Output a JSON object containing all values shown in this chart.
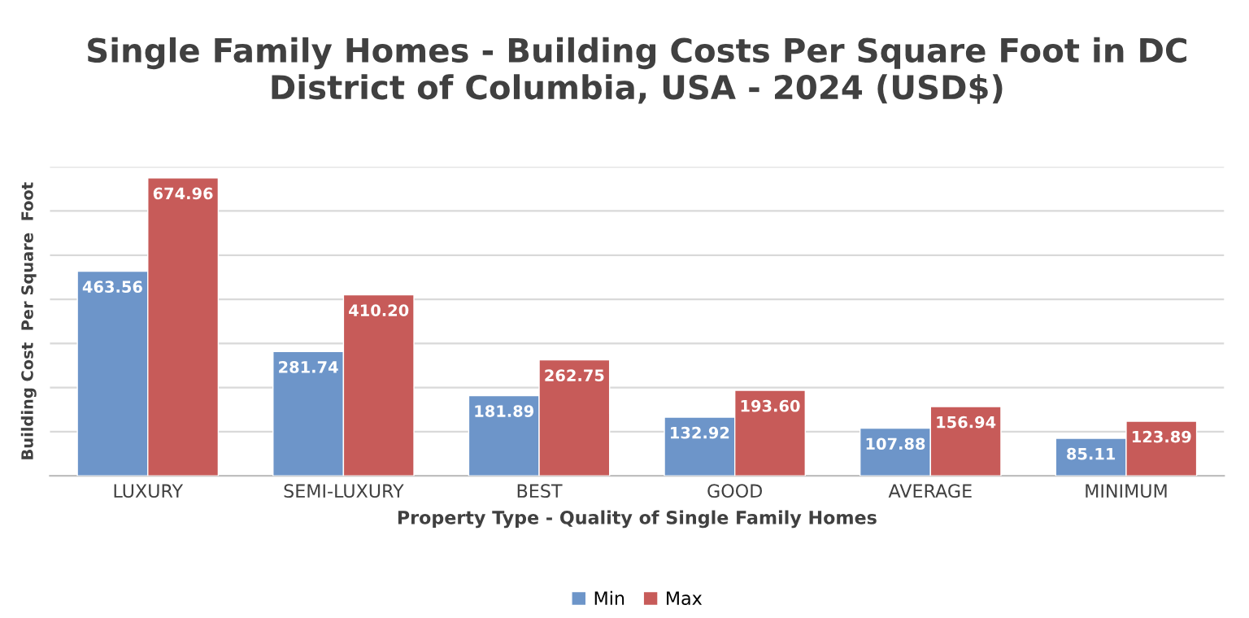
{
  "chart_data": {
    "type": "bar",
    "title": "Single Family Homes - Building Costs Per Square Foot in DC\nDistrict of Columbia, USA - 2024 (USD$)",
    "xlabel": "Property Type - Quality of Single Family Homes",
    "ylabel": "Building Cost  Per Square  Foot",
    "categories": [
      "LUXURY",
      "SEMI-LUXURY",
      "BEST",
      "GOOD",
      "AVERAGE",
      "MINIMUM"
    ],
    "series": [
      {
        "name": "Min",
        "color": "#6d95c9",
        "values": [
          463.56,
          281.74,
          181.89,
          132.92,
          107.88,
          85.11
        ],
        "value_labels": [
          "463.56",
          "281.74",
          "181.89",
          "132.92",
          "107.88",
          "85.11"
        ]
      },
      {
        "name": "Max",
        "color": "#c75b59",
        "values": [
          674.96,
          410.2,
          262.75,
          193.6,
          156.94,
          123.89
        ],
        "value_labels": [
          "674.96",
          "410.20",
          "262.75",
          "193.60",
          "156.94",
          "123.89"
        ]
      }
    ],
    "ylim": [
      0,
      700
    ],
    "yticks": [
      {
        "value": 0,
        "label": null
      },
      {
        "value": 100,
        "label": null
      },
      {
        "value": 200,
        "label": null
      },
      {
        "value": 300,
        "label": null
      },
      {
        "value": 400,
        "label": null
      },
      {
        "value": 500,
        "label": null
      },
      {
        "value": 600,
        "label": null
      },
      {
        "value": 700,
        "label": null
      }
    ],
    "tick_labels": "x",
    "grid": "y",
    "legend": "bottom"
  }
}
